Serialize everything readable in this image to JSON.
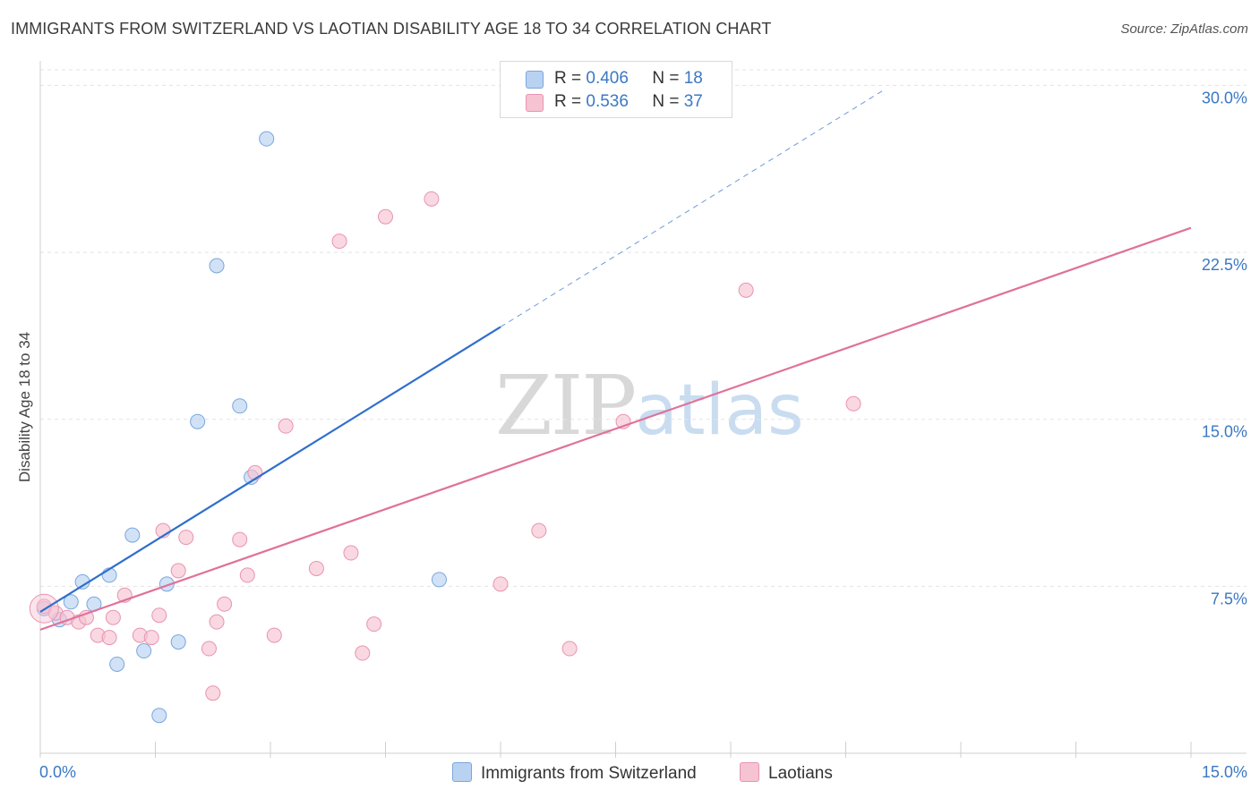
{
  "title": "IMMIGRANTS FROM SWITZERLAND VS LAOTIAN DISABILITY AGE 18 TO 34 CORRELATION CHART",
  "source": "Source: ZipAtlas.com",
  "watermark": {
    "zip": "ZIP",
    "atlas": "atlas"
  },
  "legend_top": {
    "r_label": "R =",
    "n_label": "N =",
    "series": [
      {
        "name": "Immigrants from Switzerland",
        "r": "0.406",
        "n": "18"
      },
      {
        "name": "Laotians",
        "r": "0.536",
        "n": "37"
      }
    ]
  },
  "colors": {
    "blue_fill": "#b9d2f1",
    "blue_edge": "#7aa6dd",
    "blue_line": "#2f6fcc",
    "pink_fill": "#f6c3d2",
    "pink_edge": "#e993b0",
    "pink_line": "#e0719a",
    "grid": "#e3e3e3",
    "tick_text": "#3b78c4"
  },
  "chart_data": {
    "type": "scatter",
    "title": "IMMIGRANTS FROM SWITZERLAND VS LAOTIAN DISABILITY AGE 18 TO 34 CORRELATION CHART",
    "xlabel": "",
    "ylabel": "Disability Age 18 to 34",
    "xlim": [
      0,
      15
    ],
    "ylim": [
      0,
      30.7
    ],
    "x_tick_labels": [
      "0.0%",
      "15.0%"
    ],
    "y_ticks": [
      7.5,
      15.0,
      22.5,
      30.0
    ],
    "y_tick_labels": [
      "7.5%",
      "15.0%",
      "22.5%",
      "30.0%"
    ],
    "series": [
      {
        "name": "Immigrants from Switzerland",
        "color": "blue",
        "points": [
          [
            0.05,
            6.5
          ],
          [
            0.25,
            6.0
          ],
          [
            0.4,
            6.8
          ],
          [
            0.55,
            7.7
          ],
          [
            0.7,
            6.7
          ],
          [
            0.9,
            8.0
          ],
          [
            1.0,
            4.0
          ],
          [
            1.2,
            9.8
          ],
          [
            1.35,
            4.6
          ],
          [
            1.55,
            1.7
          ],
          [
            1.65,
            7.6
          ],
          [
            1.8,
            5.0
          ],
          [
            2.05,
            14.9
          ],
          [
            2.3,
            21.9
          ],
          [
            2.6,
            15.6
          ],
          [
            2.75,
            12.4
          ],
          [
            2.95,
            27.6
          ],
          [
            5.2,
            7.8
          ]
        ],
        "trend": {
          "x": [
            0.0,
            6.0
          ],
          "y": [
            6.35,
            19.15
          ]
        },
        "trend_dashed": {
          "x": [
            6.0,
            11.0
          ],
          "y": [
            19.15,
            29.8
          ]
        }
      },
      {
        "name": "Laotians",
        "color": "pink",
        "points": [
          [
            0.05,
            6.6
          ],
          [
            0.2,
            6.3
          ],
          [
            0.35,
            6.1
          ],
          [
            0.5,
            5.9
          ],
          [
            0.6,
            6.1
          ],
          [
            0.75,
            5.3
          ],
          [
            0.9,
            5.2
          ],
          [
            0.95,
            6.1
          ],
          [
            1.1,
            7.1
          ],
          [
            1.3,
            5.3
          ],
          [
            1.45,
            5.2
          ],
          [
            1.55,
            6.2
          ],
          [
            1.6,
            10.0
          ],
          [
            1.8,
            8.2
          ],
          [
            1.9,
            9.7
          ],
          [
            2.2,
            4.7
          ],
          [
            2.25,
            2.7
          ],
          [
            2.3,
            5.9
          ],
          [
            2.4,
            6.7
          ],
          [
            2.6,
            9.6
          ],
          [
            2.7,
            8.0
          ],
          [
            2.8,
            12.6
          ],
          [
            3.05,
            5.3
          ],
          [
            3.2,
            14.7
          ],
          [
            3.6,
            8.3
          ],
          [
            3.9,
            23.0
          ],
          [
            4.05,
            9.0
          ],
          [
            4.2,
            4.5
          ],
          [
            4.35,
            5.8
          ],
          [
            4.5,
            24.1
          ],
          [
            5.1,
            24.9
          ],
          [
            6.0,
            7.6
          ],
          [
            6.5,
            10.0
          ],
          [
            6.9,
            4.7
          ],
          [
            7.6,
            14.9
          ],
          [
            9.2,
            20.8
          ],
          [
            10.6,
            15.7
          ]
        ],
        "trend": {
          "x": [
            0.0,
            15.0
          ],
          "y": [
            5.55,
            23.6
          ]
        }
      }
    ],
    "grid": true,
    "legend_position": "top-center"
  }
}
